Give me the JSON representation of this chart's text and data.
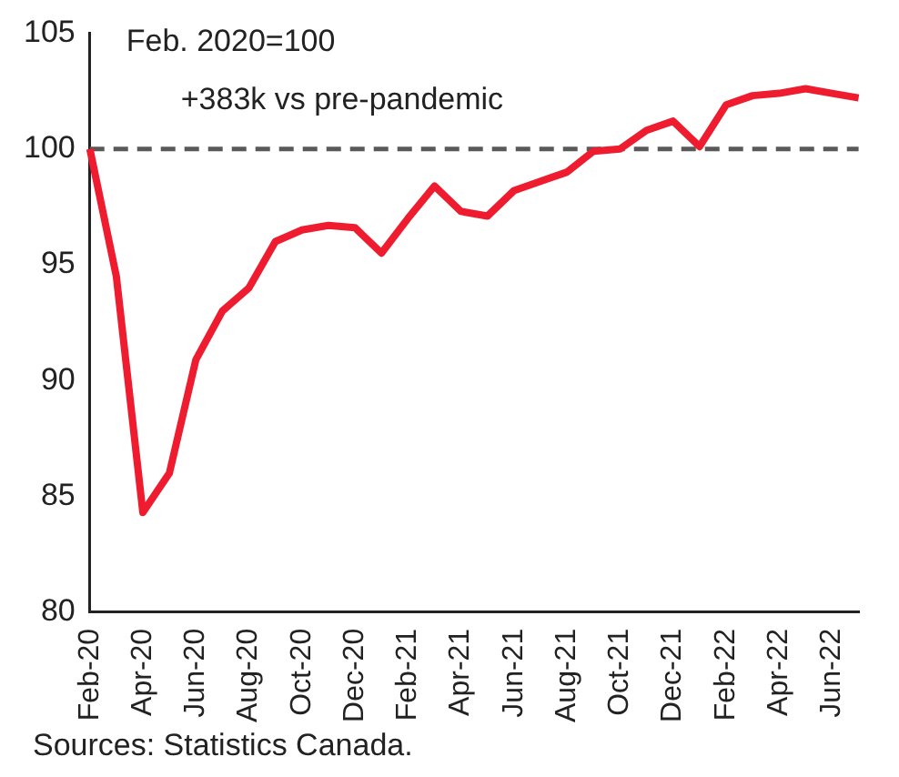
{
  "chart_data": {
    "type": "line",
    "categories": [
      "Feb-20",
      null,
      "Apr-20",
      null,
      "Jun-20",
      null,
      "Aug-20",
      null,
      "Oct-20",
      null,
      "Dec-20",
      null,
      "Feb-21",
      null,
      "Apr-21",
      null,
      "Jun-21",
      null,
      "Aug-21",
      null,
      "Oct-21",
      null,
      "Dec-21",
      null,
      "Feb-22",
      null,
      "Apr-22",
      null,
      "Jun-22",
      null
    ],
    "values": [
      100,
      94.5,
      84.3,
      86,
      90.9,
      93,
      94,
      96,
      96.5,
      96.7,
      96.6,
      95.5,
      97,
      98.4,
      97.3,
      97.1,
      98.2,
      98.6,
      99,
      99.9,
      100,
      100.8,
      101.2,
      100.1,
      101.9,
      102.3,
      102.4,
      102.6,
      102.4,
      102.2
    ],
    "color": "#ee1c2e",
    "ylim": [
      80,
      105
    ],
    "yticks": [
      80,
      85,
      90,
      95,
      100,
      105
    ],
    "ref_lines": [
      {
        "axis": "y",
        "value": 100,
        "color": "#595959",
        "line_style": "dashed"
      }
    ],
    "annotations": [
      "Feb. 2020=100",
      "+383k vs pre-pandemic",
      "Sources: Statistics Canada."
    ],
    "grid": false,
    "legend": false,
    "marker": "none",
    "line_style": "solid"
  }
}
